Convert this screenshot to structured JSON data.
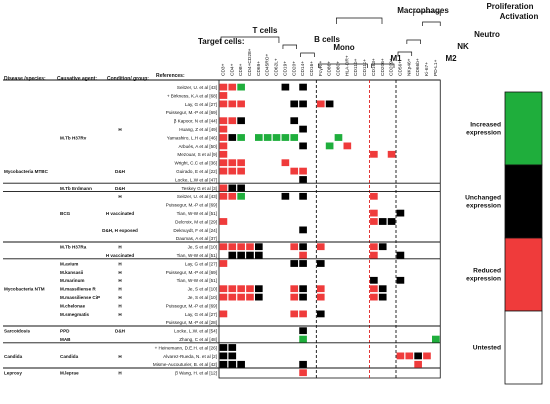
{
  "chart_data": {
    "type": "heatmap",
    "header": {
      "target_cells": "Target cells:",
      "references": "References:",
      "disease_species": "Disease /species:",
      "causative_agent": "Causative agent:",
      "condition_group": "Condition/ group:"
    },
    "groups": [
      "T cells",
      "B cells",
      "Mono",
      "M1",
      "M2",
      "NK",
      "Neutro",
      "Macrophages",
      "Proliferation",
      "Activation"
    ],
    "markers": [
      "CD3+",
      "CD4+",
      "CD8+",
      "CD4+CD28+",
      "CD69+",
      "CD45RO+",
      "CD62L+",
      "CD19+",
      "CD20+",
      "CD14+",
      "CD16+",
      "FcγRI+",
      "CD86+",
      "CD80+",
      "HLA-DR+",
      "CD11b+",
      "CD11c+",
      "CD163+",
      "CD206+",
      "CD209+",
      "CD56+",
      "NKp46+",
      "CD66b+",
      "Ki-67+",
      "PD-L1+"
    ],
    "legend": {
      "categories": [
        "Increased expression",
        "Unchanged expression",
        "Reduced expression",
        "Untested"
      ],
      "colors": [
        "#1fae3c",
        "#000000",
        "#ef3b3b",
        "#ffffff"
      ]
    },
    "codes": {
      "0": "Untested",
      "1": "Increased expression",
      "2": "Unchanged expression",
      "3": "Reduced expression"
    },
    "rows": [
      {
        "disease": "",
        "agent": "",
        "condition": "",
        "ref": "Seitzer, U. et al [43]",
        "values": [
          3,
          3,
          1,
          0,
          0,
          0,
          0,
          2,
          0,
          2,
          0,
          0,
          0,
          0,
          0,
          0,
          0,
          0,
          0,
          0,
          0,
          0,
          0,
          0,
          0
        ]
      },
      {
        "disease": "",
        "agent": "",
        "condition": "",
        "ref": "+ Birkness, K.A et al [68]",
        "values": [
          3,
          0,
          0,
          0,
          0,
          0,
          0,
          0,
          0,
          0,
          0,
          0,
          0,
          0,
          0,
          0,
          0,
          0,
          0,
          0,
          0,
          0,
          0,
          0,
          0
        ]
      },
      {
        "disease": "",
        "agent": "",
        "condition": "",
        "ref": "Lay, G et al [27]",
        "values": [
          3,
          3,
          3,
          0,
          0,
          0,
          0,
          0,
          2,
          2,
          0,
          3,
          2,
          0,
          0,
          0,
          0,
          0,
          0,
          0,
          0,
          0,
          0,
          0,
          0
        ]
      },
      {
        "disease": "",
        "agent": "",
        "condition": "",
        "ref": "Puissegur, M.-P et al [69]",
        "values": [
          0,
          0,
          0,
          0,
          0,
          0,
          0,
          0,
          0,
          0,
          0,
          0,
          0,
          0,
          0,
          0,
          0,
          0,
          0,
          0,
          0,
          0,
          0,
          0,
          0
        ]
      },
      {
        "disease": "",
        "agent": "",
        "condition": "",
        "ref": "β Kapoor, N et al [44]",
        "values": [
          3,
          3,
          2,
          0,
          0,
          0,
          0,
          0,
          2,
          0,
          0,
          0,
          0,
          0,
          0,
          0,
          0,
          0,
          0,
          0,
          0,
          0,
          0,
          0,
          0
        ]
      },
      {
        "disease": "",
        "agent": "",
        "condition": "H",
        "ref": "Huang, Z et al [49]",
        "values": [
          3,
          0,
          0,
          0,
          0,
          0,
          0,
          0,
          0,
          2,
          0,
          0,
          0,
          0,
          0,
          0,
          0,
          0,
          0,
          0,
          0,
          0,
          0,
          0,
          0
        ]
      },
      {
        "disease": "",
        "agent": "M.Tb H37Rv",
        "condition": "",
        "ref": "Yamashiro, L.H et al [46]",
        "values": [
          3,
          2,
          1,
          0,
          1,
          1,
          1,
          1,
          1,
          0,
          0,
          0,
          0,
          1,
          0,
          0,
          0,
          0,
          0,
          0,
          0,
          0,
          0,
          0,
          0
        ]
      },
      {
        "disease": "",
        "agent": "",
        "condition": "",
        "ref": "Arbués, A et al [50]",
        "values": [
          3,
          0,
          0,
          0,
          0,
          0,
          0,
          0,
          0,
          2,
          0,
          0,
          1,
          0,
          3,
          0,
          0,
          0,
          0,
          0,
          0,
          0,
          0,
          0,
          0
        ]
      },
      {
        "disease": "",
        "agent": "",
        "condition": "",
        "ref": "Mezouar, S et al [9]",
        "values": [
          3,
          0,
          0,
          0,
          0,
          0,
          0,
          0,
          0,
          0,
          0,
          0,
          0,
          0,
          0,
          0,
          0,
          3,
          0,
          3,
          0,
          0,
          0,
          0,
          0
        ]
      },
      {
        "disease": "",
        "agent": "",
        "condition": "",
        "ref": "Wright, C.C et al [36]",
        "values": [
          3,
          3,
          3,
          0,
          0,
          0,
          0,
          3,
          0,
          0,
          0,
          0,
          0,
          0,
          0,
          0,
          0,
          0,
          0,
          0,
          0,
          0,
          0,
          0,
          0
        ]
      },
      {
        "disease": "Mycobacteria MTBC",
        "agent": "",
        "condition": "D&H",
        "ref": "Guirado, E et al [22]",
        "values": [
          3,
          3,
          3,
          0,
          0,
          0,
          0,
          0,
          3,
          3,
          0,
          0,
          0,
          0,
          0,
          0,
          0,
          0,
          0,
          0,
          0,
          0,
          0,
          0,
          0
        ]
      },
      {
        "disease": "",
        "agent": "",
        "condition": "",
        "ref": "Locke, L.W et al [47]",
        "values": [
          0,
          0,
          0,
          0,
          0,
          0,
          0,
          0,
          0,
          2,
          0,
          0,
          0,
          0,
          0,
          0,
          0,
          0,
          0,
          0,
          0,
          0,
          0,
          0,
          0
        ]
      },
      {
        "disease": "",
        "agent": "M.Tb Erdmann",
        "condition": "D&H",
        "ref": "Teskey G et al [3]",
        "values": [
          3,
          2,
          2,
          0,
          0,
          0,
          0,
          0,
          0,
          0,
          0,
          0,
          0,
          0,
          0,
          0,
          0,
          0,
          0,
          0,
          0,
          0,
          0,
          0,
          0
        ]
      },
      {
        "disease": "",
        "agent": "",
        "condition": "H",
        "ref": "Seitzer, U. et al [43]",
        "values": [
          3,
          3,
          1,
          0,
          0,
          0,
          0,
          2,
          0,
          2,
          0,
          0,
          0,
          0,
          0,
          0,
          0,
          3,
          0,
          0,
          0,
          0,
          0,
          0,
          0
        ]
      },
      {
        "disease": "",
        "agent": "",
        "condition": "",
        "ref": "Puissegur, M.-P et al [69]",
        "values": [
          0,
          0,
          0,
          0,
          0,
          0,
          0,
          0,
          0,
          0,
          0,
          0,
          0,
          0,
          0,
          0,
          0,
          0,
          0,
          0,
          0,
          0,
          0,
          0,
          0
        ]
      },
      {
        "disease": "",
        "agent": "BCG",
        "condition": "H vaccinated",
        "ref": "Tian, W-W et al [51]",
        "values": [
          0,
          0,
          0,
          0,
          0,
          0,
          0,
          0,
          0,
          0,
          0,
          0,
          0,
          0,
          0,
          0,
          0,
          3,
          0,
          0,
          2,
          0,
          0,
          0,
          0
        ]
      },
      {
        "disease": "",
        "agent": "",
        "condition": "",
        "ref": "Delcroix, M et al [29]",
        "values": [
          3,
          0,
          0,
          0,
          0,
          0,
          0,
          0,
          0,
          0,
          0,
          0,
          0,
          0,
          0,
          0,
          0,
          3,
          2,
          2,
          0,
          0,
          0,
          0,
          0
        ]
      },
      {
        "disease": "",
        "agent": "",
        "condition": "D&H, H exposed",
        "ref": "Deknuydt, F et al [24]",
        "values": [
          0,
          0,
          0,
          0,
          0,
          0,
          0,
          0,
          0,
          2,
          0,
          0,
          0,
          0,
          0,
          0,
          0,
          0,
          0,
          0,
          0,
          0,
          0,
          0,
          0
        ]
      },
      {
        "disease": "",
        "agent": "",
        "condition": "",
        "ref": "Daumas, A et al [37]",
        "values": [
          0,
          0,
          0,
          0,
          0,
          0,
          0,
          0,
          0,
          0,
          0,
          0,
          0,
          0,
          0,
          0,
          0,
          0,
          0,
          0,
          0,
          0,
          0,
          0,
          0
        ]
      },
      {
        "disease": "",
        "agent": "M.Tb H37Ra",
        "condition": "H",
        "ref": "Je, S et al [10]",
        "values": [
          3,
          3,
          3,
          3,
          2,
          0,
          0,
          0,
          3,
          2,
          0,
          3,
          0,
          0,
          0,
          0,
          0,
          3,
          2,
          0,
          0,
          0,
          0,
          0,
          0
        ]
      },
      {
        "disease": "",
        "agent": "",
        "condition": "H vaccinated",
        "ref": "Tian, W-W et al [51]",
        "values": [
          0,
          2,
          2,
          2,
          2,
          0,
          0,
          0,
          0,
          3,
          0,
          0,
          0,
          0,
          0,
          0,
          0,
          3,
          0,
          0,
          2,
          0,
          0,
          0,
          0
        ]
      },
      {
        "disease": "",
        "agent": "M.avium",
        "condition": "H",
        "ref": "Lay, G et al [27]",
        "values": [
          3,
          0,
          0,
          0,
          0,
          0,
          0,
          0,
          2,
          2,
          0,
          2,
          0,
          0,
          0,
          0,
          0,
          0,
          0,
          0,
          0,
          0,
          0,
          0,
          0
        ]
      },
      {
        "disease": "",
        "agent": "M.kansasii",
        "condition": "H",
        "ref": "Puissegur, M.-P et al [69]",
        "values": [
          0,
          0,
          0,
          0,
          0,
          0,
          0,
          0,
          0,
          0,
          0,
          0,
          0,
          0,
          0,
          0,
          0,
          0,
          0,
          0,
          0,
          0,
          0,
          0,
          0
        ]
      },
      {
        "disease": "",
        "agent": "M.marinum",
        "condition": "H",
        "ref": "Tian, W-W et al [51]",
        "values": [
          0,
          0,
          0,
          0,
          0,
          0,
          0,
          0,
          0,
          0,
          0,
          0,
          0,
          0,
          0,
          0,
          0,
          2,
          0,
          0,
          2,
          0,
          0,
          0,
          0
        ]
      },
      {
        "disease": "Mycobacteria NTM",
        "agent": "M.massiliense R",
        "condition": "H",
        "ref": "Je, S et al [10]",
        "values": [
          3,
          3,
          3,
          3,
          2,
          0,
          0,
          0,
          3,
          2,
          0,
          3,
          0,
          0,
          0,
          0,
          0,
          3,
          2,
          0,
          0,
          0,
          0,
          0,
          0
        ]
      },
      {
        "disease": "",
        "agent": "M.massiliense CiP",
        "condition": "H",
        "ref": "Je, S et al [10]",
        "values": [
          3,
          3,
          3,
          3,
          2,
          0,
          0,
          0,
          3,
          2,
          0,
          3,
          0,
          0,
          0,
          0,
          0,
          3,
          2,
          0,
          0,
          0,
          0,
          0,
          0
        ]
      },
      {
        "disease": "",
        "agent": "M.chelonae",
        "condition": "H",
        "ref": "Puissegur, M.-P et al [69]",
        "values": [
          0,
          0,
          0,
          0,
          0,
          0,
          0,
          0,
          0,
          0,
          0,
          0,
          0,
          0,
          0,
          0,
          0,
          0,
          0,
          0,
          0,
          0,
          0,
          0,
          0
        ]
      },
      {
        "disease": "",
        "agent": "M.smegmatis",
        "condition": "H",
        "ref": "Lay, G et al [27]",
        "values": [
          3,
          0,
          0,
          0,
          0,
          0,
          0,
          0,
          3,
          3,
          0,
          2,
          0,
          0,
          0,
          0,
          0,
          0,
          0,
          0,
          0,
          0,
          0,
          0,
          0
        ]
      },
      {
        "disease": "",
        "agent": "",
        "condition": "",
        "ref": "Puissegur, M.-P et al [28]",
        "values": [
          0,
          0,
          0,
          0,
          0,
          0,
          0,
          0,
          0,
          0,
          0,
          0,
          0,
          0,
          0,
          0,
          0,
          0,
          0,
          0,
          0,
          0,
          0,
          0,
          0
        ]
      },
      {
        "disease": "Sarcoidosis",
        "agent": "PPD",
        "condition": "D&H",
        "ref": "Locke, L.W. et al [54]",
        "values": [
          0,
          0,
          0,
          0,
          0,
          0,
          0,
          0,
          0,
          2,
          0,
          0,
          0,
          0,
          0,
          0,
          0,
          0,
          0,
          0,
          0,
          0,
          0,
          0,
          0
        ]
      },
      {
        "disease": "",
        "agent": "MAB",
        "condition": "",
        "ref": "Zhang, C et al [48]",
        "values": [
          0,
          0,
          0,
          0,
          0,
          0,
          0,
          0,
          0,
          1,
          0,
          0,
          0,
          0,
          0,
          0,
          0,
          0,
          0,
          0,
          0,
          0,
          0,
          0,
          1
        ]
      },
      {
        "disease": "",
        "agent": "",
        "condition": "",
        "ref": "+ Heinemann, D.E.H. et al [26]",
        "values": [
          2,
          2,
          0,
          0,
          0,
          0,
          0,
          0,
          0,
          0,
          0,
          0,
          0,
          0,
          0,
          0,
          0,
          0,
          0,
          0,
          0,
          0,
          0,
          0,
          0
        ]
      },
      {
        "disease": "Candida",
        "agent": "Candida",
        "condition": "H",
        "ref": "Alvarez-Rueda, N. et al [2]",
        "values": [
          2,
          2,
          0,
          0,
          0,
          0,
          0,
          0,
          0,
          0,
          0,
          0,
          0,
          0,
          0,
          0,
          0,
          0,
          0,
          0,
          3,
          3,
          2,
          3,
          0
        ]
      },
      {
        "disease": "",
        "agent": "",
        "condition": "",
        "ref": "Misme-Aucouturier, B. et al [42]",
        "values": [
          2,
          2,
          2,
          0,
          0,
          0,
          0,
          0,
          0,
          2,
          0,
          0,
          0,
          0,
          0,
          0,
          0,
          0,
          0,
          0,
          0,
          0,
          3,
          0,
          0
        ]
      },
      {
        "disease": "Leprosy",
        "agent": "M.leprae",
        "condition": "H",
        "ref": "β Wang, H. et al [12]",
        "values": [
          0,
          0,
          0,
          0,
          0,
          0,
          0,
          0,
          0,
          3,
          0,
          0,
          0,
          0,
          0,
          0,
          0,
          0,
          0,
          0,
          0,
          0,
          0,
          0,
          0
        ]
      }
    ]
  }
}
